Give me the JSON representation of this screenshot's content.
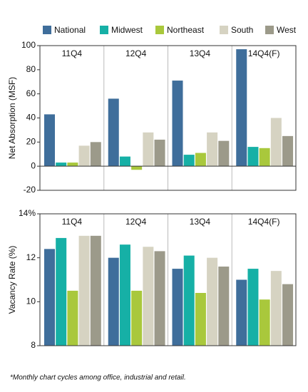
{
  "chart_data": [
    {
      "type": "bar",
      "y_label": "Net Absorption (MSF)",
      "categories": [
        "11Q4",
        "12Q4",
        "13Q4",
        "14Q4(F)"
      ],
      "series": [
        {
          "name": "National",
          "color": "#3f6e9b",
          "values": [
            43,
            56,
            71,
            97
          ]
        },
        {
          "name": "Midwest",
          "color": "#16b0a6",
          "values": [
            3,
            8,
            9.5,
            16
          ]
        },
        {
          "name": "Northeast",
          "color": "#a9c83c",
          "values": [
            3,
            -3,
            11,
            15
          ]
        },
        {
          "name": "South",
          "color": "#d6d3c2",
          "values": [
            17,
            28,
            28,
            40
          ]
        },
        {
          "name": "West",
          "color": "#9c9a8a",
          "values": [
            20,
            22,
            21,
            25
          ]
        }
      ],
      "ylim": [
        -20,
        100
      ],
      "yticks": [
        -20,
        0,
        20,
        40,
        60,
        80,
        100
      ]
    },
    {
      "type": "bar",
      "y_label": "Vacancy Rate (%)",
      "categories": [
        "11Q4",
        "12Q4",
        "13Q4",
        "14Q4(F)"
      ],
      "series": [
        {
          "color": "#3f6e9b",
          "values": [
            12.4,
            12.0,
            11.5,
            11.0
          ]
        },
        {
          "color": "#16b0a6",
          "values": [
            12.9,
            12.6,
            12.1,
            11.5
          ]
        },
        {
          "color": "#a9c83c",
          "values": [
            10.5,
            10.5,
            10.4,
            10.1
          ]
        },
        {
          "color": "#d6d3c2",
          "values": [
            13.0,
            12.5,
            12.0,
            11.4
          ]
        },
        {
          "color": "#9c9a8a",
          "values": [
            13.0,
            12.3,
            11.6,
            10.8
          ]
        }
      ],
      "ylim": [
        8,
        14
      ],
      "yticks": [
        8,
        10,
        12,
        {
          "value": 14,
          "label": "14%"
        }
      ]
    }
  ],
  "footnote": "*Monthly chart cycles among office, industrial and retail."
}
